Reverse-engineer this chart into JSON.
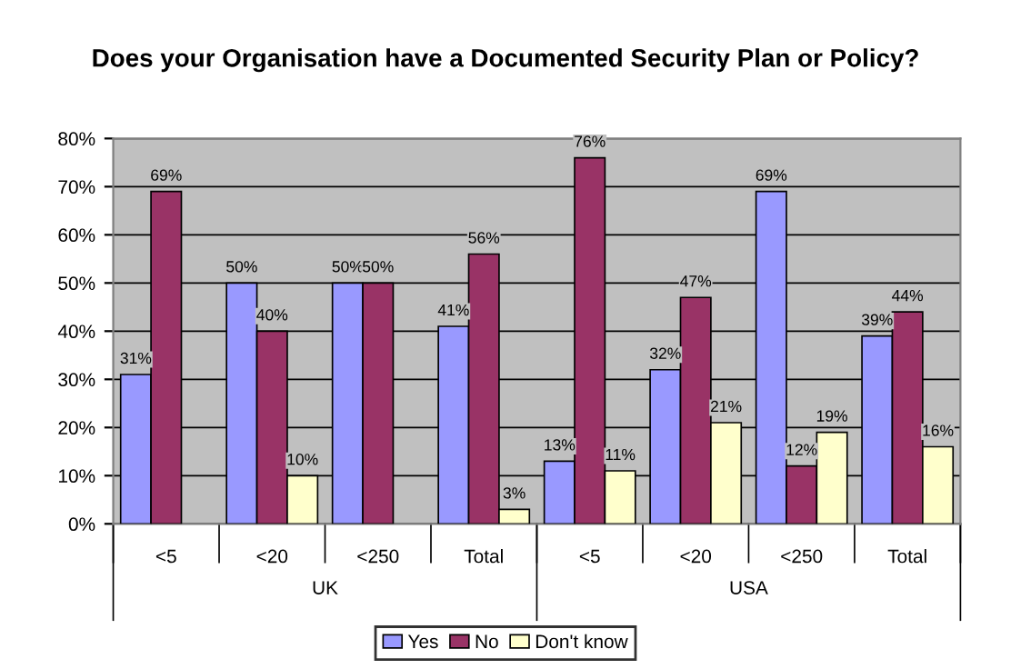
{
  "chart_data": {
    "type": "bar",
    "title": "Does your Organisation have a Documented Security Plan or Policy?",
    "categories": [
      "<5",
      "<20",
      "<250",
      "Total",
      "<5",
      "<20",
      "<250",
      "Total"
    ],
    "annotations": [
      "UK",
      "USA"
    ],
    "series": [
      {
        "name": "Yes",
        "color": "#9999ff",
        "values": [
          31,
          50,
          50,
          41,
          13,
          32,
          69,
          39
        ],
        "value_labels": [
          "31%",
          "50%",
          "50%",
          "41%",
          "13%",
          "32%",
          "69%",
          "39%"
        ]
      },
      {
        "name": "No",
        "color": "#993366",
        "values": [
          69,
          40,
          50,
          56,
          76,
          47,
          12,
          44
        ],
        "value_labels": [
          "69%",
          "40%",
          "50%",
          "56%",
          "76%",
          "47%",
          "12%",
          "44%"
        ]
      },
      {
        "name": "Don't know",
        "color": "#ffffcc",
        "values": [
          null,
          10,
          null,
          3,
          11,
          21,
          19,
          16
        ],
        "value_labels": [
          null,
          "10%",
          null,
          "3%",
          "11%",
          "21%",
          "19%",
          "16%"
        ]
      }
    ],
    "ylim": [
      0,
      80
    ],
    "yticks": [
      {
        "value": 0,
        "label": "0%"
      },
      {
        "value": 10,
        "label": "10%"
      },
      {
        "value": 20,
        "label": "20%"
      },
      {
        "value": 30,
        "label": "30%"
      },
      {
        "value": 40,
        "label": "40%"
      },
      {
        "value": 50,
        "label": "50%"
      },
      {
        "value": 60,
        "label": "60%"
      },
      {
        "value": 70,
        "label": "70%"
      },
      {
        "value": 80,
        "label": "80%"
      }
    ],
    "grid": "y",
    "legend": "bottom"
  }
}
